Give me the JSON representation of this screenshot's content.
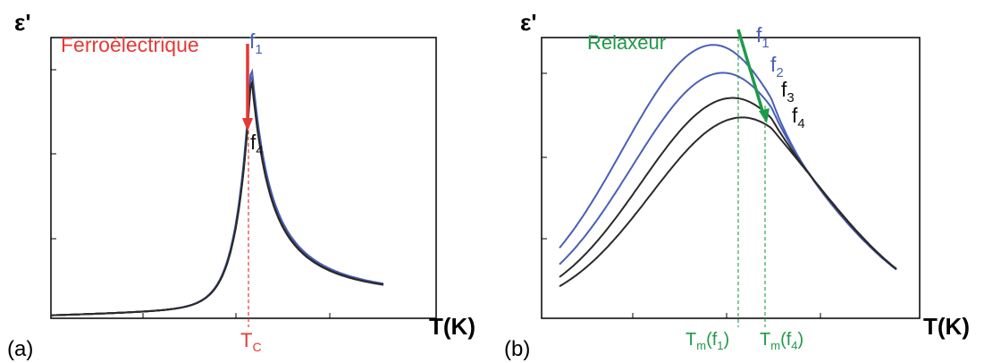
{
  "colors": {
    "blue": "#4a5fb8",
    "red": "#e53935",
    "green": "#1f9a4a",
    "dark": "#2a2a2a"
  },
  "chart_data": [
    {
      "type": "line",
      "panel_label": "(a)",
      "ylabel": "ε'",
      "xlabel": "T(K)",
      "annotation": "Ferroélectrique",
      "annotation_color": "#e53935",
      "peak_label": "T",
      "peak_label_sub": "C",
      "freq_top": {
        "base": "f",
        "sub": "1"
      },
      "freq_bottom": {
        "base": "f",
        "sub": "4"
      },
      "grid": false,
      "series": [
        {
          "peak_T": 0.0,
          "peak_eps": 0.85,
          "color": "blue"
        },
        {
          "peak_T": 0.0,
          "peak_eps": 0.83,
          "color": "blue"
        },
        {
          "peak_T": 0.0,
          "peak_eps": 0.81,
          "color": "dark"
        },
        {
          "peak_T": 0.0,
          "peak_eps": 0.8,
          "color": "dark"
        }
      ]
    },
    {
      "type": "line",
      "panel_label": "(b)",
      "ylabel": "ε'",
      "xlabel": "T(K)",
      "annotation": "Relaxeur",
      "annotation_color": "#1f9a4a",
      "tm_labels": [
        {
          "base": "T",
          "sub": "m",
          "arg_base": "(f",
          "arg_sub": "1",
          "arg_end": ")"
        },
        {
          "base": "T",
          "sub": "m",
          "arg_base": "(f",
          "arg_sub": "4",
          "arg_end": ")"
        }
      ],
      "grid": false,
      "series": [
        {
          "label": {
            "base": "f",
            "sub": "1"
          },
          "peak_T": 0.0,
          "peak_eps": 0.96,
          "color": "blue"
        },
        {
          "label": {
            "base": "f",
            "sub": "2"
          },
          "peak_T": 0.1,
          "peak_eps": 0.86,
          "color": "blue"
        },
        {
          "label": {
            "base": "f",
            "sub": "3"
          },
          "peak_T": 0.2,
          "peak_eps": 0.77,
          "color": "dark"
        },
        {
          "label": {
            "base": "f",
            "sub": "4"
          },
          "peak_T": 0.3,
          "peak_eps": 0.7,
          "color": "dark"
        }
      ]
    }
  ]
}
